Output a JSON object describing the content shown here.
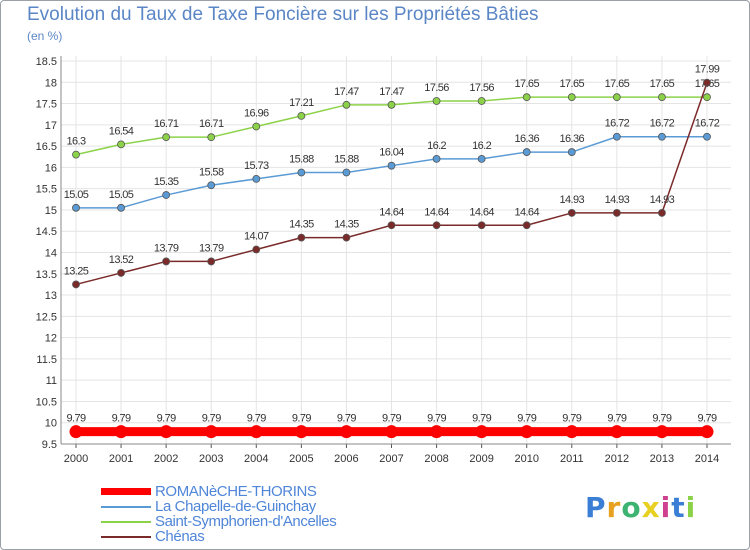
{
  "chart_data": {
    "type": "line",
    "title": "Evolution du Taux de Taxe Foncière sur les Propriétés Bâties",
    "subtitle": "(en %)",
    "x": [
      "2000",
      "2001",
      "2002",
      "2003",
      "2004",
      "2005",
      "2006",
      "2007",
      "2008",
      "2009",
      "2010",
      "2011",
      "2012",
      "2013",
      "2014"
    ],
    "y_ticks": [
      "9.5",
      "10",
      "10.5",
      "11",
      "11.5",
      "12",
      "12.5",
      "13",
      "13.5",
      "14",
      "14.5",
      "15",
      "15.5",
      "16",
      "16.5",
      "17",
      "17.5",
      "18",
      "18.5"
    ],
    "ylim": [
      9.5,
      18.5
    ],
    "grid": true,
    "series": [
      {
        "name": "ROMANèCHE-THORINS",
        "color": "#ff0000",
        "values": [
          9.79,
          9.79,
          9.79,
          9.79,
          9.79,
          9.79,
          9.79,
          9.79,
          9.79,
          9.79,
          9.79,
          9.79,
          9.79,
          9.79,
          9.79
        ],
        "labels": [
          "9.79",
          "9.79",
          "9.79",
          "9.79",
          "9.79",
          "9.79",
          "9.79",
          "9.79",
          "9.79",
          "9.79",
          "9.79",
          "9.79",
          "9.79",
          "9.79",
          "9.79"
        ]
      },
      {
        "name": "La Chapelle-de-Guinchay",
        "color": "#5b9bd5",
        "values": [
          15.05,
          15.05,
          15.35,
          15.58,
          15.73,
          15.88,
          15.88,
          16.04,
          16.2,
          16.2,
          16.36,
          16.36,
          16.72,
          16.72,
          16.72
        ],
        "labels": [
          "15.05",
          "15.05",
          "15.35",
          "15.58",
          "15.73",
          "15.88",
          "15.88",
          "16.04",
          "16.2",
          "16.2",
          "16.36",
          "16.36",
          "16.72",
          "16.72",
          "16.72"
        ]
      },
      {
        "name": "Saint-Symphorien-d'Ancelles",
        "color": "#8cd248",
        "values": [
          16.3,
          16.54,
          16.71,
          16.71,
          16.96,
          17.21,
          17.47,
          17.47,
          17.56,
          17.56,
          17.65,
          17.65,
          17.65,
          17.65,
          17.65
        ],
        "labels": [
          "16.3",
          "16.54",
          "16.71",
          "16.71",
          "16.96",
          "17.21",
          "17.47",
          "17.47",
          "17.56",
          "17.56",
          "17.65",
          "17.65",
          "17.65",
          "17.65",
          "17.65"
        ]
      },
      {
        "name": "Chénas",
        "color": "#7b2a2a",
        "values": [
          13.25,
          13.52,
          13.79,
          13.79,
          14.07,
          14.35,
          14.35,
          14.64,
          14.64,
          14.64,
          14.64,
          14.93,
          14.93,
          14.93,
          17.99
        ],
        "labels": [
          "13.25",
          "13.52",
          "13.79",
          "13.79",
          "14.07",
          "14.35",
          "14.35",
          "14.64",
          "14.64",
          "14.64",
          "14.64",
          "14.93",
          "14.93",
          "14.93",
          "17.99"
        ]
      }
    ],
    "legend_position": "bottom-left"
  },
  "logo": {
    "letters": [
      "P",
      "r",
      "o",
      "x",
      "i",
      "t",
      "i"
    ],
    "colors": [
      "#3a7fd5",
      "#e8a020",
      "#3cb371",
      "#e8d020",
      "#d04090",
      "#3a7fd5",
      "#8cd248"
    ]
  }
}
